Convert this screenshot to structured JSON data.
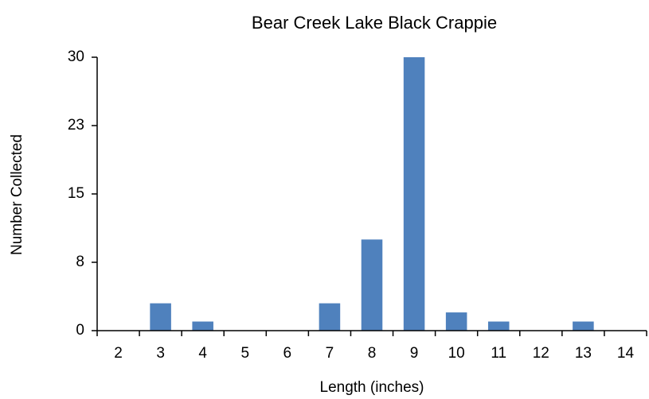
{
  "chart_data": {
    "type": "bar",
    "title": "Bear Creek Lake Black Crappie",
    "x_label": "Length (inches)",
    "y_label": "Number Collected",
    "categories": [
      "2",
      "3",
      "4",
      "5",
      "6",
      "7",
      "8",
      "9",
      "10",
      "11",
      "12",
      "13",
      "14"
    ],
    "values": [
      0,
      3,
      1,
      0,
      0,
      3,
      10,
      30,
      2,
      1,
      0,
      1,
      0
    ],
    "color": "#4f81bd",
    "ylim": [
      0,
      30
    ],
    "yticks": [
      0,
      {
        "value": 7.5,
        "label": "8"
      },
      15,
      {
        "value": 22.5,
        "label": "23"
      },
      30
    ],
    "grid": false
  }
}
